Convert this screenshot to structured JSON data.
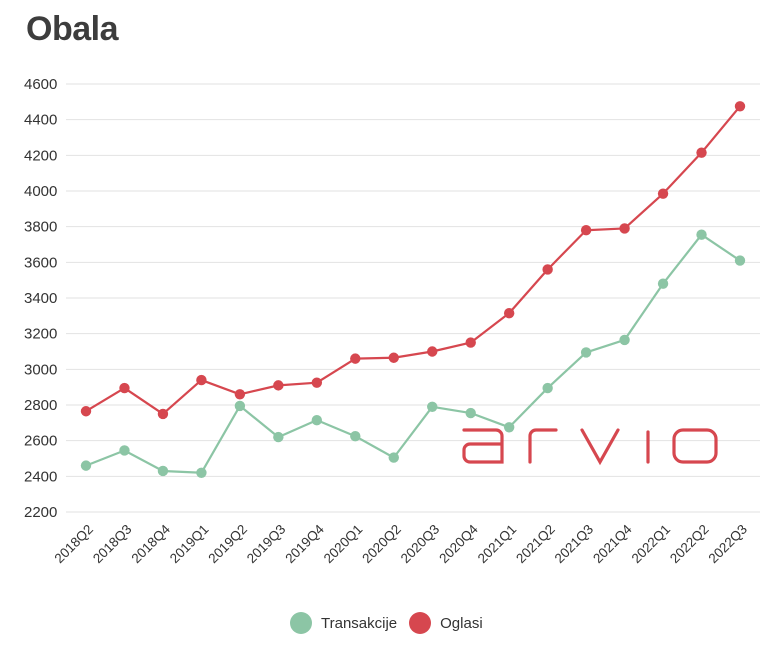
{
  "title": "Obala",
  "chart_data": {
    "type": "line",
    "title": "Obala",
    "categories": [
      "2018Q2",
      "2018Q3",
      "2018Q4",
      "2019Q1",
      "2019Q2",
      "2019Q3",
      "2019Q4",
      "2020Q1",
      "2020Q2",
      "2020Q3",
      "2020Q4",
      "2021Q1",
      "2021Q2",
      "2021Q3",
      "2021Q4",
      "2022Q1",
      "2022Q2",
      "2022Q3"
    ],
    "series": [
      {
        "name": "Transakcije",
        "color": "#8cc5a5",
        "values": [
          2460,
          2545,
          2430,
          2420,
          2795,
          2620,
          2715,
          2625,
          2505,
          2790,
          2755,
          2675,
          2895,
          3095,
          3165,
          3480,
          3755,
          3610
        ]
      },
      {
        "name": "Oglasi",
        "color": "#d6474f",
        "values": [
          2765,
          2895,
          2750,
          2940,
          2860,
          2910,
          2925,
          3060,
          3065,
          3100,
          3150,
          3315,
          3560,
          3780,
          3790,
          3985,
          4215,
          4475
        ]
      }
    ],
    "yticks": [
      2200,
      2400,
      2600,
      2800,
      3000,
      3200,
      3400,
      3600,
      3800,
      4000,
      4200,
      4400,
      4600
    ],
    "ylim": [
      2200,
      4600
    ],
    "grid": true,
    "legend_position": "bottom-center"
  },
  "logo": {
    "text": "arvio",
    "color": "#d6474f"
  }
}
